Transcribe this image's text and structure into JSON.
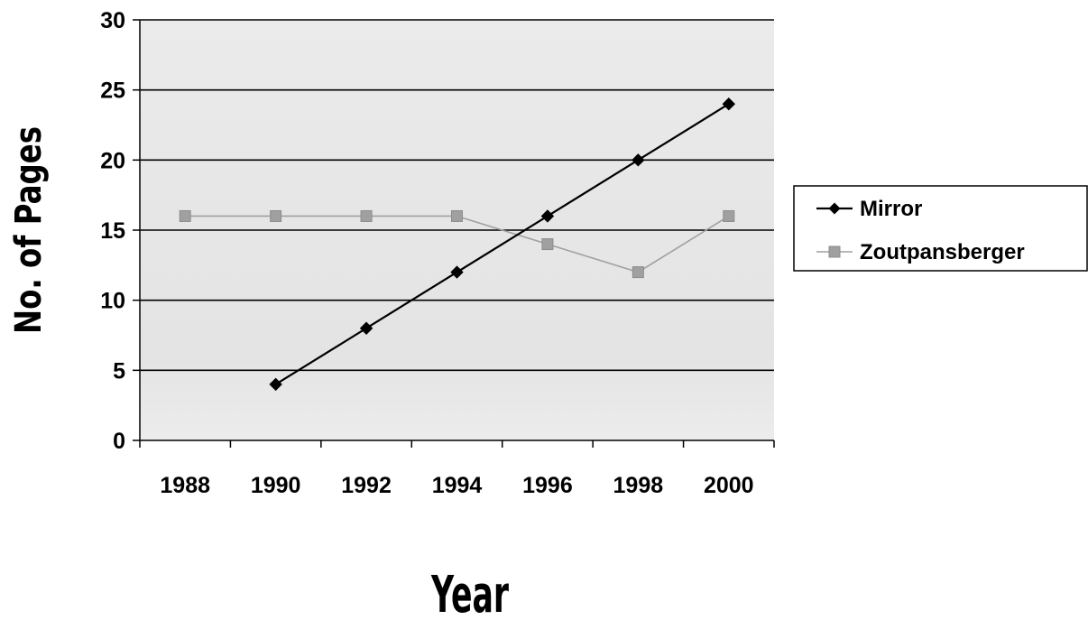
{
  "chart_data": {
    "type": "line",
    "title": "",
    "xlabel": "Year",
    "ylabel": "No. of Pages",
    "xlim": [
      1988,
      2000
    ],
    "ylim": [
      0,
      30
    ],
    "x_ticks": [
      "1988",
      "1990",
      "1992",
      "1994",
      "1996",
      "1998",
      "2000"
    ],
    "y_ticks": [
      "0",
      "5",
      "10",
      "15",
      "20",
      "25",
      "30"
    ],
    "grid": true,
    "legend_position": "right",
    "series": [
      {
        "name": "Mirror",
        "color": "#000000",
        "marker": "diamond",
        "points": [
          {
            "x": 1990,
            "y": 4
          },
          {
            "x": 1992,
            "y": 8
          },
          {
            "x": 1994,
            "y": 12
          },
          {
            "x": 1996,
            "y": 16
          },
          {
            "x": 1998,
            "y": 20
          },
          {
            "x": 2000,
            "y": 24
          }
        ]
      },
      {
        "name": "Zoutpansberger",
        "color": "#a0a0a0",
        "marker": "square",
        "points": [
          {
            "x": 1988,
            "y": 16
          },
          {
            "x": 1990,
            "y": 16
          },
          {
            "x": 1992,
            "y": 16
          },
          {
            "x": 1994,
            "y": 16
          },
          {
            "x": 1996,
            "y": 14
          },
          {
            "x": 1998,
            "y": 12
          },
          {
            "x": 2000,
            "y": 16
          }
        ]
      }
    ],
    "plot_background": "#e6e6e6"
  }
}
